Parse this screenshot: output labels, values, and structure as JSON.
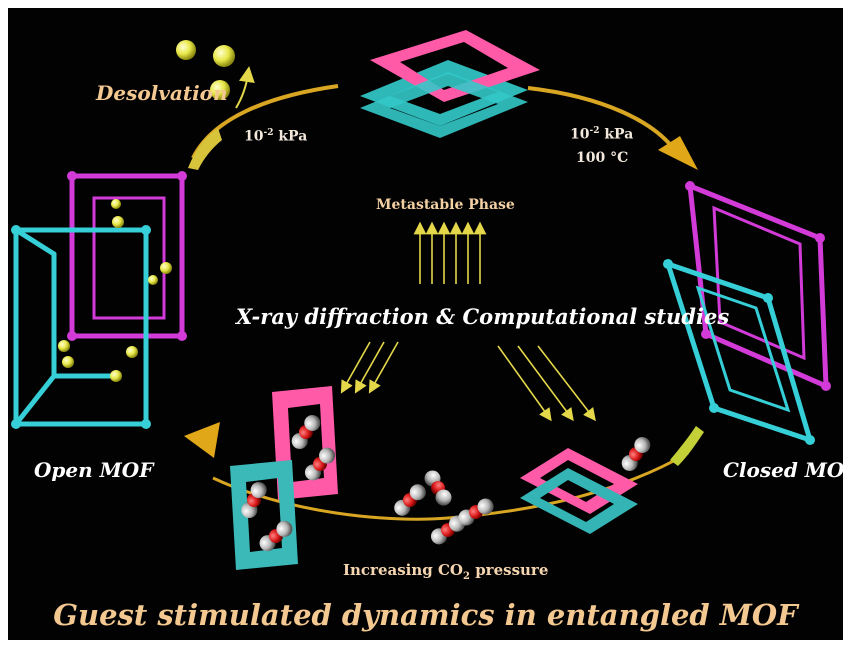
{
  "diagram": {
    "labels": {
      "desolvation": "Desolvation",
      "pressure_left_base": "10",
      "pressure_left_exp": "-2",
      "pressure_left_unit": " kPa",
      "pressure_right_base": "10",
      "pressure_right_exp": "-2",
      "pressure_right_unit": " kPa",
      "temperature": "100 °C",
      "metastable": "Metastable Phase",
      "xray": "X-ray diffraction & Computational studies",
      "open_mof": "Open MOF",
      "closed_mof": "Closed MOF",
      "co2_prefix": "Increasing CO",
      "co2_sub": "2",
      "co2_suffix": " pressure",
      "title": "Guest stimulated dynamics in entangled MOF"
    },
    "colors": {
      "background": "#020202",
      "cycle_arrow": "#d9a623",
      "framework_magenta": "#e040e8",
      "framework_cyan": "#3ed6e0",
      "pink_slab": "#ff5aa8",
      "teal_slab": "#3bc0c0",
      "guest_sphere": "#e8e84a",
      "co2_oxygen": "#bdbdbd",
      "co2_carbon": "#d81818",
      "title_text": "#f4c891"
    }
  }
}
